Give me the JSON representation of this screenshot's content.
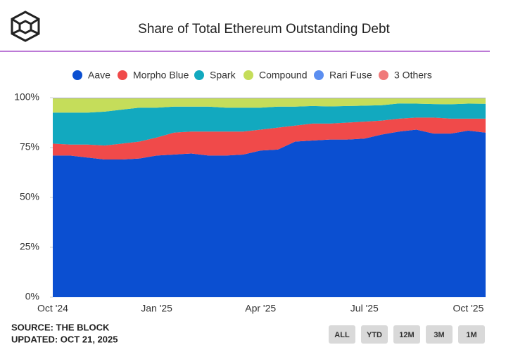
{
  "chart_data": {
    "type": "stacked_area",
    "title": "Share of Total Ethereum Outstanding Debt",
    "categories": [
      "Oct '24",
      null,
      null,
      null,
      null,
      null,
      "Jan '25",
      null,
      null,
      null,
      null,
      null,
      "Apr '25",
      null,
      null,
      null,
      null,
      null,
      "Jul '25",
      null,
      null,
      null,
      null,
      null,
      "Oct '25",
      null
    ],
    "series": [
      {
        "name": "Aave",
        "color": "#0b4fd1",
        "values": [
          71,
          71,
          70,
          69,
          69,
          69.5,
          71,
          71.5,
          72,
          71,
          71,
          71.5,
          73.5,
          74,
          78,
          78.5,
          79,
          79,
          79.5,
          81.5,
          83,
          84,
          82,
          82,
          83.5,
          82.5
        ]
      },
      {
        "name": "Morpho Blue",
        "color": "#f04a4a",
        "values": [
          6,
          5.5,
          6.5,
          7,
          8,
          8.5,
          9,
          11,
          11,
          12,
          12,
          11.5,
          10.5,
          11,
          8,
          8.5,
          8,
          8.5,
          8.5,
          7,
          6.5,
          6,
          8,
          7.5,
          6,
          7
        ]
      },
      {
        "name": "Spark",
        "color": "#12a9bf",
        "values": [
          15.5,
          16,
          16,
          17,
          17,
          17,
          15,
          13,
          12.5,
          12.5,
          12,
          12,
          11,
          10.5,
          9.5,
          8.8,
          8.6,
          8.3,
          8,
          7.7,
          7.6,
          7,
          6.8,
          7.2,
          7.5,
          7.4
        ]
      },
      {
        "name": "Compound",
        "color": "#c5dd5a",
        "values": [
          7.2,
          7.2,
          7.2,
          6.7,
          5.7,
          4.7,
          4.7,
          4.2,
          4.2,
          4.2,
          4.7,
          4.7,
          4.7,
          4.2,
          4.2,
          3.9,
          4.1,
          3.9,
          3.7,
          3.5,
          2.6,
          2.7,
          2.9,
          3,
          2.7,
          2.8
        ]
      },
      {
        "name": "Rari Fuse",
        "color": "#5b8ef0",
        "values": [
          0.2,
          0.2,
          0.2,
          0.2,
          0.2,
          0.2,
          0.2,
          0.2,
          0.2,
          0.2,
          0.2,
          0.2,
          0.2,
          0.2,
          0.2,
          0.2,
          0.2,
          0.2,
          0.2,
          0.2,
          0.2,
          0.2,
          0.2,
          0.2,
          0.2,
          0.2
        ]
      },
      {
        "name": "3 Others",
        "color": "#f07a7a",
        "values": [
          0.1,
          0.1,
          0.1,
          0.1,
          0.1,
          0.1,
          0.1,
          0.1,
          0.1,
          0.1,
          0.1,
          0.1,
          0.1,
          0.1,
          0.1,
          0.1,
          0.1,
          0.1,
          0.1,
          0.1,
          0.1,
          0.1,
          0.1,
          0.1,
          0.1,
          0.1
        ]
      }
    ],
    "ylim": [
      0,
      100
    ],
    "yticks": [
      {
        "value": 0,
        "label": "0%"
      },
      {
        "value": 25,
        "label": "25%"
      },
      {
        "value": 50,
        "label": "50%"
      },
      {
        "value": 75,
        "label": "75%"
      },
      {
        "value": 100,
        "label": "100%"
      }
    ]
  },
  "footer": {
    "source": "SOURCE: THE BLOCK",
    "updated": "UPDATED: OCT 21, 2025"
  },
  "buttons": [
    "ALL",
    "YTD",
    "12M",
    "3M",
    "1M"
  ]
}
